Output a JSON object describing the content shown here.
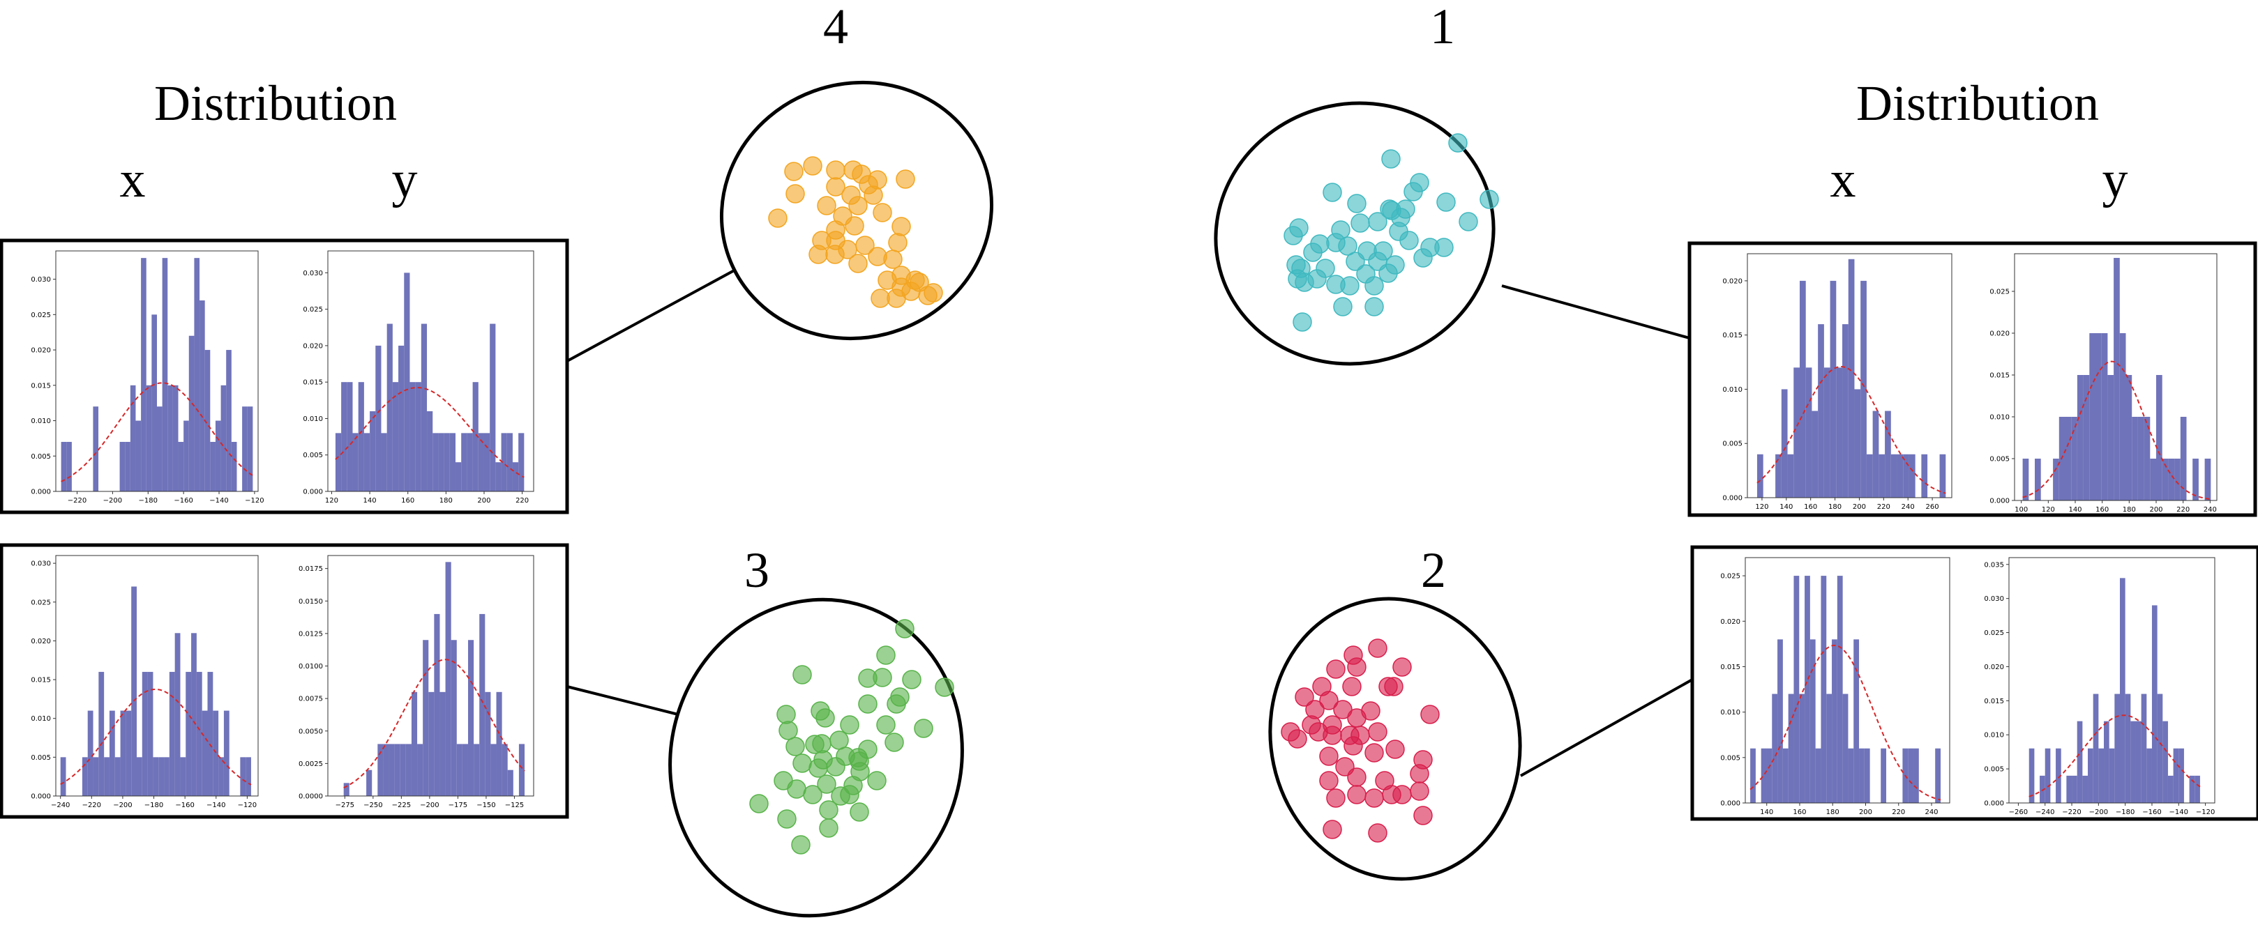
{
  "colors": {
    "bar": "#6f73b9",
    "curve": "#d62728",
    "cluster_1": "#3fb9c0",
    "cluster_2": "#d81f4c",
    "cluster_3": "#58b34a",
    "cluster_4": "#f3a521"
  },
  "headings": {
    "left": "Distribution",
    "right": "Distribution"
  },
  "axis_letters": {
    "x": "x",
    "y": "y"
  },
  "cluster_labels": {
    "c1": "1",
    "c2": "2",
    "c3": "3",
    "c4": "4"
  },
  "chart_data": [
    {
      "id": "c4_x",
      "type": "bar",
      "title": "",
      "xlabel": "",
      "ylabel": "",
      "xlim": [
        -232,
        -118
      ],
      "ylim": [
        0,
        0.034
      ],
      "xticks": [
        -220,
        -200,
        -180,
        -160,
        -140,
        -120
      ],
      "yticks": [
        0.0,
        0.005,
        0.01,
        0.015,
        0.02,
        0.025,
        0.03
      ],
      "bin_edges": [
        -229,
        -226,
        -223,
        -220,
        -217,
        -214,
        -211,
        -208,
        -205,
        -202,
        -199,
        -196,
        -193,
        -190,
        -187,
        -184,
        -181,
        -178,
        -175,
        -172,
        -169,
        -166,
        -163,
        -160,
        -157,
        -154,
        -151,
        -148,
        -145,
        -142,
        -139,
        -136,
        -133,
        -130,
        -127,
        -124,
        -121
      ],
      "values": [
        0.007,
        0.007,
        0,
        0,
        0,
        0,
        0.012,
        0,
        0,
        0,
        0,
        0.007,
        0.007,
        0.015,
        0.01,
        0.033,
        0.015,
        0.025,
        0.012,
        0.033,
        0.015,
        0.015,
        0.007,
        0.01,
        0.022,
        0.033,
        0.027,
        0.02,
        0.007,
        0.01,
        0.015,
        0.02,
        0.007,
        0,
        0.012,
        0.012
      ],
      "curve": {
        "mean": -172,
        "std": 26
      }
    },
    {
      "id": "c4_y",
      "type": "bar",
      "title": "",
      "xlabel": "",
      "ylabel": "",
      "xlim": [
        118,
        226
      ],
      "ylim": [
        0,
        0.033
      ],
      "xticks": [
        120,
        140,
        160,
        180,
        200,
        220
      ],
      "yticks": [
        0.0,
        0.005,
        0.01,
        0.015,
        0.02,
        0.025,
        0.03
      ],
      "bin_edges": [
        122,
        125,
        128,
        131,
        134,
        137,
        140,
        143,
        146,
        149,
        152,
        155,
        158,
        161,
        164,
        167,
        170,
        173,
        176,
        179,
        182,
        185,
        188,
        191,
        194,
        197,
        200,
        203,
        206,
        209,
        212,
        215,
        218,
        221
      ],
      "values": [
        0.008,
        0.015,
        0.015,
        0.008,
        0.015,
        0.008,
        0.011,
        0.02,
        0.008,
        0.023,
        0.015,
        0.02,
        0.03,
        0.015,
        0.015,
        0.023,
        0.011,
        0.008,
        0.008,
        0.008,
        0.008,
        0.004,
        0.008,
        0.008,
        0.015,
        0.008,
        0.008,
        0.023,
        0.004,
        0.008,
        0.008,
        0.004,
        0.008
      ],
      "curve": {
        "mean": 165,
        "std": 28
      }
    },
    {
      "id": "c3_x",
      "type": "bar",
      "title": "",
      "xlabel": "",
      "ylabel": "",
      "xlim": [
        -243,
        -113
      ],
      "ylim": [
        0,
        0.031
      ],
      "xticks": [
        -240,
        -220,
        -200,
        -180,
        -160,
        -140,
        -120
      ],
      "yticks": [
        0.0,
        0.005,
        0.01,
        0.015,
        0.02,
        0.025,
        0.03
      ],
      "bin_edges": [
        -240,
        -236.5,
        -233,
        -229.5,
        -226,
        -222.5,
        -219,
        -215.5,
        -212,
        -208.5,
        -205,
        -201.5,
        -198,
        -194.5,
        -191,
        -187.5,
        -184,
        -180.5,
        -177,
        -173.5,
        -170,
        -166.5,
        -163,
        -159.5,
        -156,
        -152.5,
        -149,
        -145.5,
        -142,
        -138.5,
        -135,
        -131.5,
        -128,
        -124.5,
        -121,
        -117.5
      ],
      "values": [
        0.005,
        0,
        0,
        0,
        0.005,
        0.011,
        0.005,
        0.016,
        0.005,
        0.011,
        0.005,
        0.011,
        0.011,
        0.027,
        0.005,
        0.016,
        0.016,
        0.005,
        0.005,
        0.005,
        0.016,
        0.021,
        0.005,
        0.016,
        0.021,
        0.016,
        0.011,
        0.016,
        0.011,
        0.005,
        0.011,
        0,
        0,
        0.005,
        0.005
      ],
      "curve": {
        "mean": -179,
        "std": 29
      }
    },
    {
      "id": "c3_y",
      "type": "bar",
      "title": "",
      "xlabel": "",
      "ylabel": "",
      "xlim": [
        -290,
        -108
      ],
      "ylim": [
        0,
        0.0185
      ],
      "xticks": [
        -275,
        -250,
        -225,
        -200,
        -175,
        -150,
        -125
      ],
      "yticks": [
        0.0,
        0.0025,
        0.005,
        0.0075,
        0.01,
        0.0125,
        0.015,
        0.0175
      ],
      "bin_edges": [
        -276,
        -271,
        -266,
        -261,
        -256,
        -251,
        -246,
        -241,
        -236,
        -231,
        -226,
        -221,
        -216,
        -211,
        -206,
        -201,
        -196,
        -191,
        -186,
        -181,
        -176,
        -171,
        -166,
        -161,
        -156,
        -151,
        -146,
        -141,
        -136,
        -131,
        -126,
        -121,
        -116
      ],
      "values": [
        0.001,
        0,
        0,
        0,
        0.002,
        0,
        0.004,
        0.004,
        0.004,
        0.004,
        0.004,
        0.004,
        0.008,
        0.004,
        0.012,
        0.008,
        0.014,
        0.008,
        0.018,
        0.012,
        0.004,
        0.004,
        0.012,
        0.004,
        0.014,
        0.008,
        0.004,
        0.008,
        0.004,
        0.002,
        0,
        0.004
      ],
      "curve": {
        "mean": -186,
        "std": 38
      }
    },
    {
      "id": "c1_x",
      "type": "bar",
      "title": "",
      "xlabel": "",
      "ylabel": "",
      "xlim": [
        108,
        276
      ],
      "ylim": [
        0,
        0.0225
      ],
      "xticks": [
        120,
        140,
        160,
        180,
        200,
        220,
        240,
        260
      ],
      "yticks": [
        0.0,
        0.005,
        0.01,
        0.015,
        0.02
      ],
      "bin_edges": [
        116,
        121,
        126,
        131,
        136,
        141,
        146,
        151,
        156,
        161,
        166,
        171,
        176,
        181,
        186,
        191,
        196,
        201,
        206,
        211,
        216,
        221,
        226,
        231,
        236,
        241,
        246,
        251,
        256,
        261,
        266,
        271
      ],
      "values": [
        0.004,
        0,
        0,
        0.004,
        0.01,
        0.004,
        0.012,
        0.02,
        0.012,
        0.008,
        0.016,
        0.012,
        0.02,
        0.012,
        0.016,
        0.022,
        0.01,
        0.02,
        0.004,
        0.008,
        0.004,
        0.008,
        0.004,
        0.004,
        0.004,
        0.004,
        0,
        0.004,
        0,
        0,
        0.004
      ],
      "curve": {
        "mean": 185,
        "std": 33
      }
    },
    {
      "id": "c1_y",
      "type": "bar",
      "title": "",
      "xlabel": "",
      "ylabel": "",
      "xlim": [
        95,
        245
      ],
      "ylim": [
        0,
        0.0295
      ],
      "xticks": [
        100,
        120,
        140,
        160,
        180,
        200,
        220,
        240
      ],
      "yticks": [
        0.0,
        0.005,
        0.01,
        0.015,
        0.02,
        0.025
      ],
      "bin_edges": [
        101,
        105.5,
        110,
        114.5,
        119,
        123.5,
        128,
        132.5,
        137,
        141.5,
        146,
        150.5,
        155,
        159.5,
        164,
        168.5,
        173,
        177.5,
        182,
        186.5,
        191,
        195.5,
        200,
        204.5,
        209,
        213.5,
        218,
        222.5,
        227,
        231.5,
        236,
        240.5
      ],
      "values": [
        0.005,
        0,
        0.005,
        0,
        0,
        0.005,
        0.01,
        0.01,
        0.01,
        0.015,
        0.015,
        0.02,
        0.02,
        0.02,
        0.015,
        0.029,
        0.02,
        0.015,
        0.01,
        0.01,
        0.01,
        0.005,
        0.015,
        0.005,
        0.005,
        0.005,
        0.01,
        0,
        0.005,
        0,
        0.005
      ],
      "curve": {
        "mean": 167,
        "std": 24
      }
    },
    {
      "id": "c2_x",
      "type": "bar",
      "title": "",
      "xlabel": "",
      "ylabel": "",
      "xlim": [
        127,
        251
      ],
      "ylim": [
        0,
        0.027
      ],
      "xticks": [
        140,
        160,
        180,
        200,
        220,
        240
      ],
      "yticks": [
        0.0,
        0.005,
        0.01,
        0.015,
        0.02,
        0.025
      ],
      "bin_edges": [
        130,
        133.3,
        136.6,
        139.9,
        143.2,
        146.5,
        149.8,
        153.1,
        156.4,
        159.7,
        163,
        166.3,
        169.6,
        172.9,
        176.2,
        179.5,
        182.8,
        186.1,
        189.4,
        192.7,
        196,
        199.3,
        202.6,
        205.9,
        209.2,
        212.5,
        215.8,
        219.1,
        222.4,
        225.7,
        229,
        232.3,
        235.6,
        238.9,
        242.2,
        245.5
      ],
      "values": [
        0.006,
        0,
        0.006,
        0.006,
        0.012,
        0.018,
        0.006,
        0.012,
        0.025,
        0.012,
        0.025,
        0.018,
        0.006,
        0.025,
        0.012,
        0.018,
        0.025,
        0.012,
        0.006,
        0.018,
        0.006,
        0.006,
        0,
        0,
        0.006,
        0,
        0,
        0,
        0.006,
        0.006,
        0.006,
        0,
        0,
        0,
        0.006
      ],
      "curve": {
        "mean": 181,
        "std": 23
      }
    },
    {
      "id": "c2_y",
      "type": "bar",
      "title": "",
      "xlabel": "",
      "ylabel": "",
      "xlim": [
        -267,
        -113
      ],
      "ylim": [
        0,
        0.036
      ],
      "xticks": [
        -260,
        -240,
        -220,
        -200,
        -180,
        -160,
        -140,
        -120
      ],
      "yticks": [
        0.0,
        0.005,
        0.01,
        0.015,
        0.02,
        0.025,
        0.03,
        0.035
      ],
      "bin_edges": [
        -252,
        -248,
        -244,
        -240,
        -236,
        -232,
        -228,
        -224,
        -220,
        -216,
        -212,
        -208,
        -204,
        -200,
        -196,
        -192,
        -188,
        -184,
        -180,
        -176,
        -172,
        -168,
        -164,
        -160,
        -156,
        -152,
        -148,
        -144,
        -140,
        -136,
        -132,
        -128,
        -124
      ],
      "values": [
        0.008,
        0,
        0.004,
        0.008,
        0,
        0.008,
        0,
        0.004,
        0.004,
        0.012,
        0.004,
        0.008,
        0.016,
        0.008,
        0.012,
        0.008,
        0.016,
        0.033,
        0.016,
        0.012,
        0.012,
        0.016,
        0.008,
        0.029,
        0.016,
        0.012,
        0.004,
        0.008,
        0.008,
        0,
        0.004,
        0.004
      ],
      "curve": {
        "mean": -181,
        "std": 31
      }
    }
  ]
}
